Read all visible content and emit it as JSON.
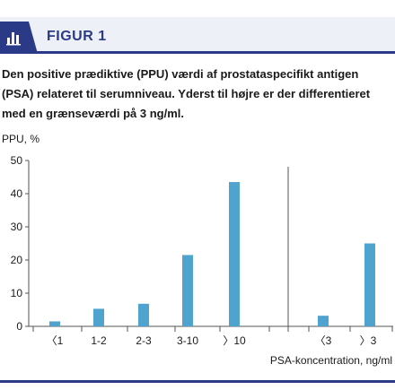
{
  "figure": {
    "label": "FIGUR 1",
    "icon": "bar-chart-icon",
    "caption": "Den positive prædiktive (PPU) værdi af prostataspecifikt antigen (PSA) relateret til serumniveau. Yderst til højre er der differentieret med en grænseværdi på 3 ng/ml."
  },
  "colors": {
    "accent": "#2b3a86",
    "bar": "#4fa3cf",
    "band": "#eef0f8"
  },
  "chart_data": {
    "type": "bar",
    "ylabel": "PPU, %",
    "xlabel": "PSA-koncentration, ng/ml",
    "ylim": [
      0,
      50
    ],
    "yticks": [
      0,
      10,
      20,
      30,
      40,
      50
    ],
    "grid": false,
    "categories": [
      "〈1",
      "1-2",
      "2-3",
      "3-10",
      "〉10",
      "〈3",
      "〉3"
    ],
    "values": [
      1.5,
      5.3,
      6.8,
      21.5,
      43.5,
      3.2,
      25.0
    ],
    "separator_after_index": 4
  }
}
